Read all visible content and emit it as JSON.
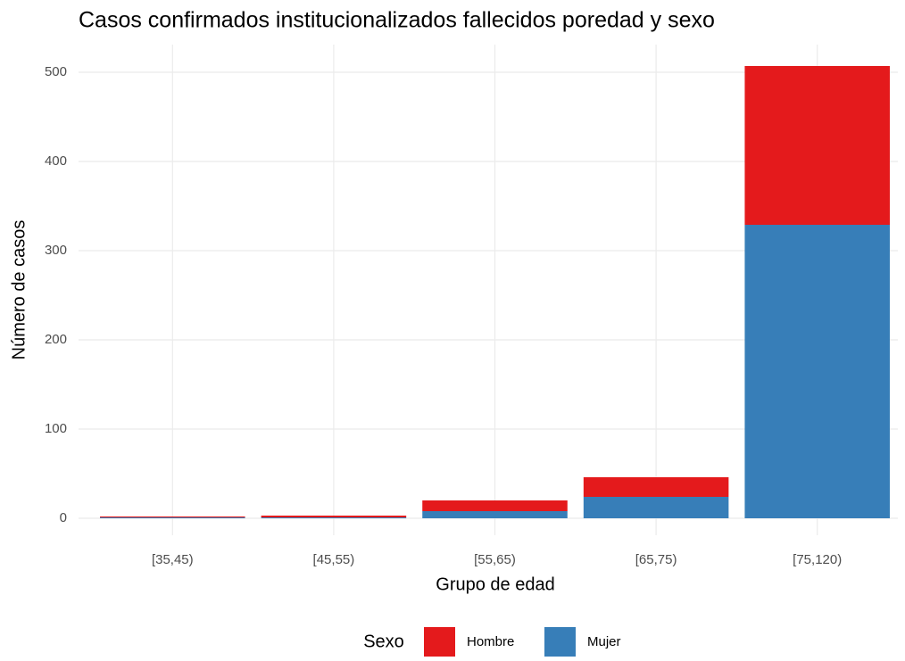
{
  "chart_data": {
    "type": "stacked_bar",
    "title": "Casos confirmados institucionalizados fallecidos poredad y sexo",
    "x_label": "Grupo de edad",
    "y_label": "Número de casos",
    "categories": [
      "[35,45)",
      "[45,55)",
      "[55,65)",
      "[65,75)",
      "[75,120)"
    ],
    "series": [
      {
        "name": "Hombre",
        "color": "#e41a1c",
        "values": [
          1,
          2,
          12,
          22,
          178
        ]
      },
      {
        "name": "Mujer",
        "color": "#377eb8",
        "values": [
          1,
          1,
          8,
          24,
          329
        ]
      }
    ],
    "legend_title": "Sexo",
    "ylim": [
      -19,
      531
    ],
    "yticks": [
      0,
      100,
      200,
      300,
      400,
      500
    ],
    "grid": true,
    "legend": "bottom"
  }
}
